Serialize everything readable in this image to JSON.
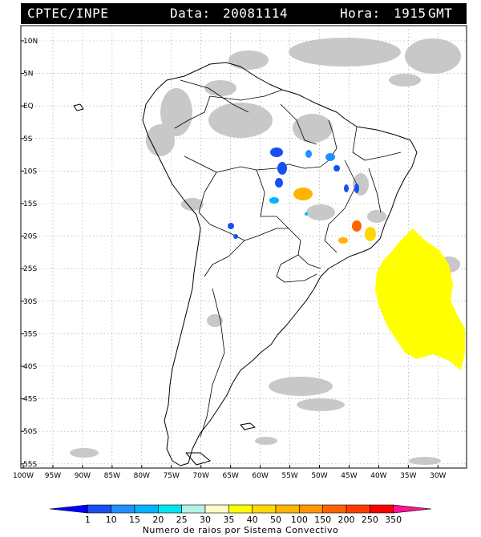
{
  "header": {
    "agency": "CPTEC/INPE",
    "date_label": "Data:",
    "date_value": "20081114",
    "hour_label": "Hora:",
    "hour_value": "1915",
    "hour_unit": "GMT"
  },
  "latitude_labels": [
    "10N",
    "5N",
    "EQ",
    "5S",
    "10S",
    "15S",
    "20S",
    "25S",
    "30S",
    "35S",
    "40S",
    "45S",
    "50S",
    "55S"
  ],
  "longitude_labels": [
    "100W",
    "95W",
    "90W",
    "85W",
    "80W",
    "75W",
    "70W",
    "65W",
    "60W",
    "55W",
    "50W",
    "45W",
    "40W",
    "35W",
    "30W"
  ],
  "colorbar": {
    "tick_labels": [
      "1",
      "10",
      "15",
      "20",
      "25",
      "30",
      "35",
      "40",
      "50",
      "100",
      "150",
      "200",
      "250",
      "350"
    ],
    "colors": [
      "#0000ff",
      "#1650f0",
      "#1e90ff",
      "#00b4ff",
      "#00e6f0",
      "#b4f0e6",
      "#fffac8",
      "#ffff00",
      "#ffd700",
      "#ffb400",
      "#ff9600",
      "#ff6400",
      "#ff3c00",
      "#ff0000",
      "#ff1493"
    ],
    "title": "Numero de raios por Sistema Convectivo"
  },
  "legend_colors": {
    "cloud_gray": "#c8c8c8",
    "land_line": "#000000",
    "grid": "#999999"
  }
}
